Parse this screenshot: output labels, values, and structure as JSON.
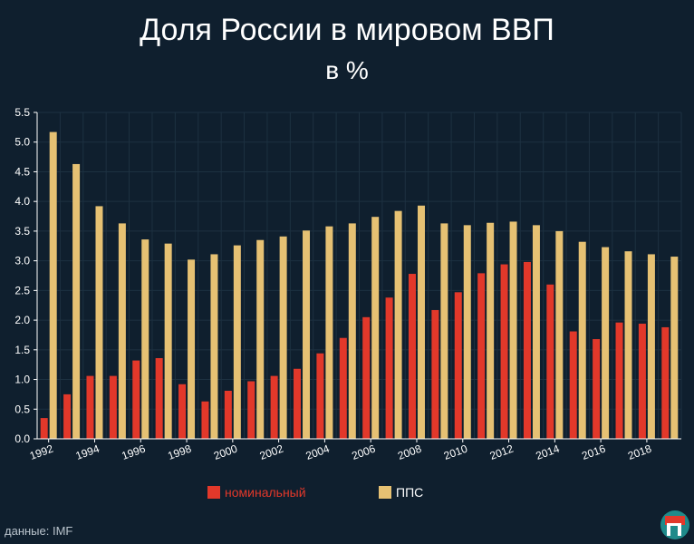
{
  "title": "Доля России в мировом ВВП",
  "subtitle": "в %",
  "source": "данные: IMF",
  "colors": {
    "background": "#0f1f2e",
    "nominal": "#e2382a",
    "ppp": "#e6c173",
    "grid": "#1d3141",
    "axis": "#ffffff"
  },
  "chart_data": {
    "type": "bar",
    "categories": [
      1992,
      1993,
      1994,
      1995,
      1996,
      1997,
      1998,
      1999,
      2000,
      2001,
      2002,
      2003,
      2004,
      2005,
      2006,
      2007,
      2008,
      2009,
      2010,
      2011,
      2012,
      2013,
      2014,
      2015,
      2016,
      2017,
      2018,
      2019
    ],
    "x_tick_labels": [
      "1992",
      "1994",
      "1996",
      "1998",
      "2000",
      "2002",
      "2004",
      "2006",
      "2008",
      "2010",
      "2012",
      "2014",
      "2016",
      "2018"
    ],
    "y_tick_labels": [
      "0.0",
      "0.5",
      "1.0",
      "1.5",
      "2.0",
      "2.5",
      "3.0",
      "3.5",
      "4.0",
      "4.5",
      "5.0",
      "5.5"
    ],
    "ylim": [
      0,
      5.5
    ],
    "grid": true,
    "legend_position": "bottom-center",
    "series": [
      {
        "name": "номинальный",
        "color": "#e2382a",
        "values": [
          0.35,
          0.75,
          1.06,
          1.06,
          1.32,
          1.36,
          0.92,
          0.63,
          0.81,
          0.97,
          1.06,
          1.18,
          1.44,
          1.7,
          2.05,
          2.38,
          2.78,
          2.17,
          2.47,
          2.79,
          2.94,
          2.98,
          2.6,
          1.81,
          1.68,
          1.96,
          1.94,
          1.88
        ]
      },
      {
        "name": "ППС",
        "color": "#e6c173",
        "values": [
          5.17,
          4.63,
          3.92,
          3.63,
          3.36,
          3.29,
          3.02,
          3.11,
          3.26,
          3.35,
          3.41,
          3.51,
          3.58,
          3.63,
          3.74,
          3.84,
          3.93,
          3.63,
          3.6,
          3.64,
          3.66,
          3.6,
          3.5,
          3.32,
          3.23,
          3.16,
          3.11,
          3.07
        ]
      }
    ]
  }
}
